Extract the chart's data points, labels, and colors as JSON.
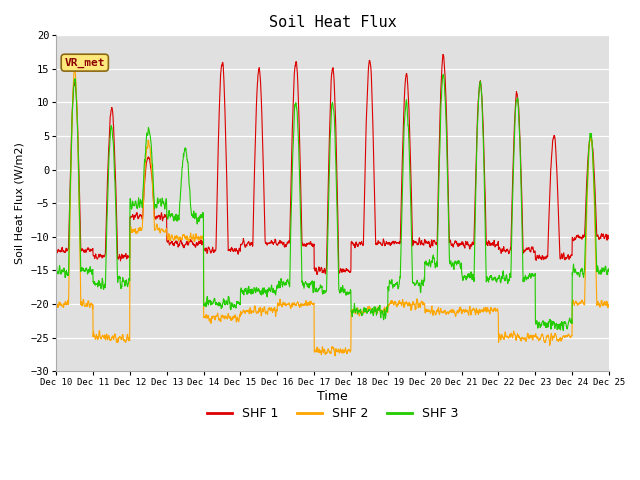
{
  "title": "Soil Heat Flux",
  "xlabel": "Time",
  "ylabel": "Soil Heat Flux (W/m2)",
  "ylim": [
    -30,
    20
  ],
  "yticks": [
    -30,
    -25,
    -20,
    -15,
    -10,
    -5,
    0,
    5,
    10,
    15,
    20
  ],
  "legend_labels": [
    "SHF 1",
    "SHF 2",
    "SHF 3"
  ],
  "colors": [
    "#dd0000",
    "#ffa500",
    "#22cc00"
  ],
  "bg_color": "#e0e0e0",
  "annotation_text": "VR_met",
  "x_tick_labels": [
    "Dec 10",
    "Dec 11",
    "Dec 12",
    "Dec 13",
    "Dec 14",
    "Dec 15",
    "Dec 16",
    "Dec 17",
    "Dec 18",
    "Dec 19",
    "Dec 20",
    "Dec 21",
    "Dec 22",
    "Dec 23",
    "Dec 24",
    "Dec 25"
  ],
  "n_days": 15,
  "pts_per_day": 144
}
